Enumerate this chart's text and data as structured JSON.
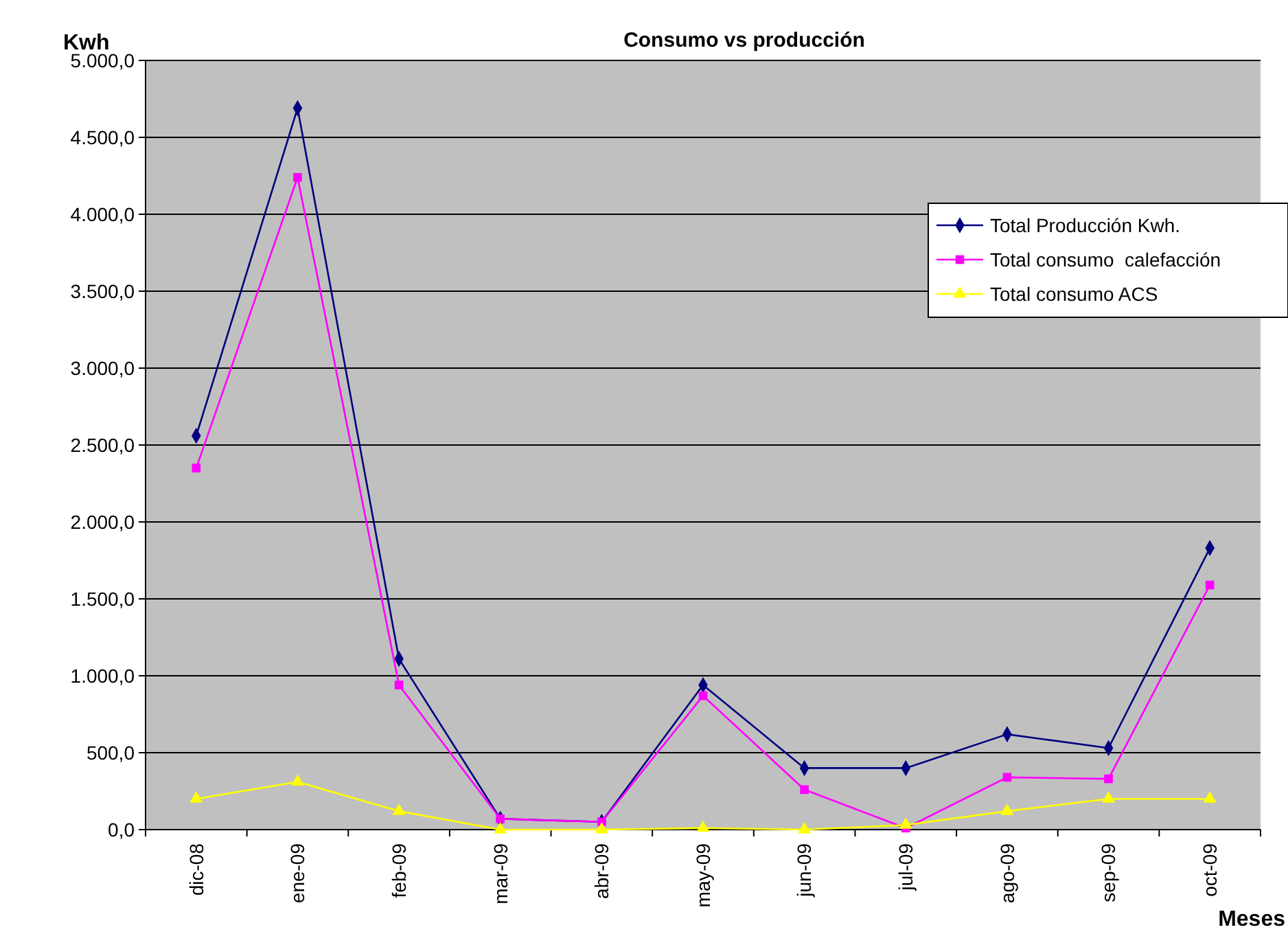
{
  "chart_data": {
    "type": "line",
    "title": "Consumo vs producción",
    "ylabel": "Kwh",
    "xlabel": "Meses",
    "categories": [
      "dic-08",
      "ene-09",
      "feb-09",
      "mar-09",
      "abr-09",
      "may-09",
      "jun-09",
      "jul-09",
      "ago-09",
      "sep-09",
      "oct-09"
    ],
    "series": [
      {
        "name": "Total Producción Kwh.",
        "color": "#000080",
        "marker": "diamond",
        "values": [
          2560,
          4690,
          1110,
          70,
          50,
          940,
          400,
          400,
          620,
          530,
          1830
        ]
      },
      {
        "name": "Total consumo  calefacción",
        "color": "#ff00ff",
        "marker": "square",
        "values": [
          2350,
          4240,
          940,
          70,
          50,
          870,
          260,
          10,
          340,
          330,
          1590
        ]
      },
      {
        "name": "Total consumo ACS",
        "color": "#ffff00",
        "marker": "triangle",
        "values": [
          200,
          310,
          120,
          0,
          0,
          10,
          0,
          30,
          120,
          200,
          200
        ]
      }
    ],
    "ylim": [
      0,
      5000
    ],
    "yticks": [
      {
        "value": 0,
        "label": "0,0"
      },
      {
        "value": 500,
        "label": "500,0"
      },
      {
        "value": 1000,
        "label": "1.000,0"
      },
      {
        "value": 1500,
        "label": "1.500,0"
      },
      {
        "value": 2000,
        "label": "2.000,0"
      },
      {
        "value": 2500,
        "label": "2.500,0"
      },
      {
        "value": 3000,
        "label": "3.000,0"
      },
      {
        "value": 3500,
        "label": "3.500,0"
      },
      {
        "value": 4000,
        "label": "4.000,0"
      },
      {
        "value": 4500,
        "label": "4.500,0"
      },
      {
        "value": 5000,
        "label": "5.000,0"
      }
    ],
    "grid": "y",
    "legend": "top right"
  }
}
